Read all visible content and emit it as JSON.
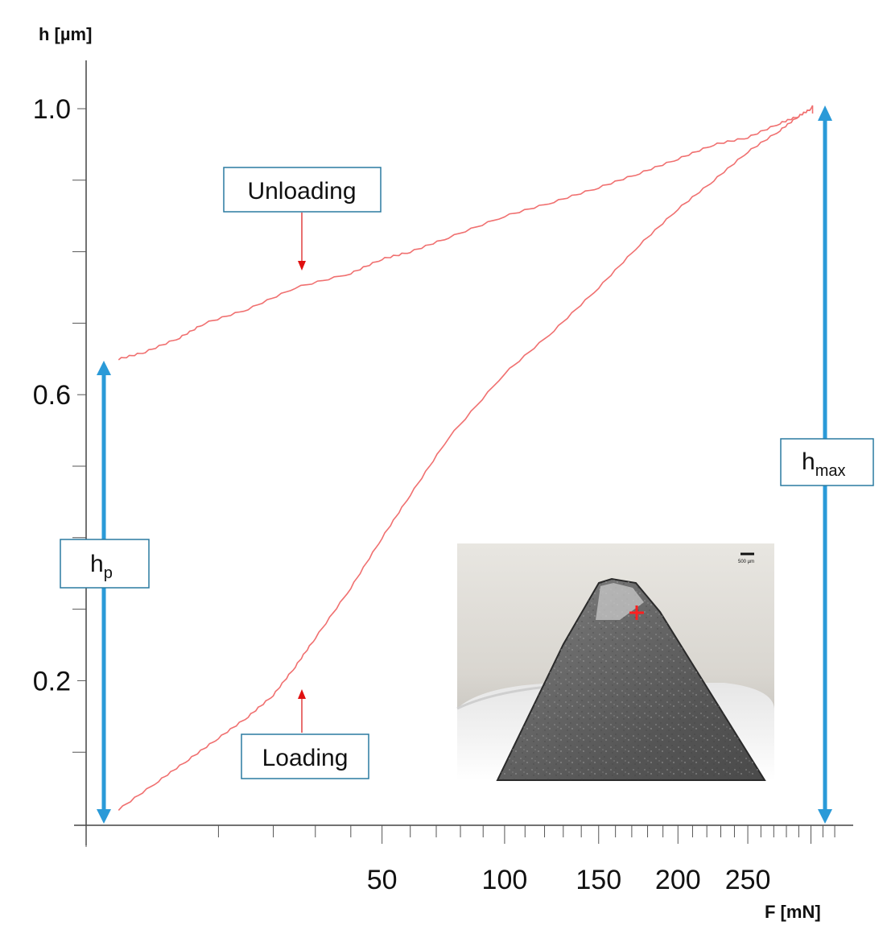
{
  "chart_data": {
    "type": "line",
    "xlabel": "F [mN]",
    "ylabel": "h [µm]",
    "x_scale": "sqrt",
    "xlim": [
      0,
      305
    ],
    "ylim": [
      0,
      1.0
    ],
    "x_ticks": [
      50,
      100,
      150,
      200,
      250
    ],
    "y_ticks": [
      0.2,
      0.6,
      1.0
    ],
    "colors": {
      "curve": "#f07070",
      "marker": "#2a9ad8",
      "box_border": "#2a7aa0"
    },
    "series": [
      {
        "x": [
          0.6,
          3,
          6,
          10,
          15,
          20,
          25,
          30,
          40,
          50,
          60,
          75,
          100,
          125,
          150,
          175,
          200,
          225,
          250,
          275,
          290,
          300
        ],
        "values": [
          0.02,
          0.06,
          0.09,
          0.12,
          0.15,
          0.18,
          0.22,
          0.26,
          0.33,
          0.4,
          0.46,
          0.54,
          0.63,
          0.69,
          0.75,
          0.81,
          0.86,
          0.9,
          0.94,
          0.97,
          0.99,
          1.0
        ]
      },
      {
        "x": [
          0.6,
          2,
          5,
          8,
          15,
          25,
          40,
          50,
          60,
          75,
          100,
          125,
          150,
          175,
          200,
          225,
          250,
          275,
          290,
          300
        ],
        "values": [
          0.65,
          0.66,
          0.68,
          0.7,
          0.72,
          0.75,
          0.77,
          0.79,
          0.8,
          0.82,
          0.85,
          0.87,
          0.89,
          0.91,
          0.93,
          0.95,
          0.96,
          0.98,
          0.99,
          1.0
        ]
      }
    ],
    "annotations": {
      "unloading": "Unloading",
      "loading": "Loading",
      "hp_base": "h",
      "hp_sub": "p",
      "hmax_base": "h",
      "hmax_sub": "max"
    }
  },
  "inset": {
    "scale_bar_label": "500 µm"
  }
}
